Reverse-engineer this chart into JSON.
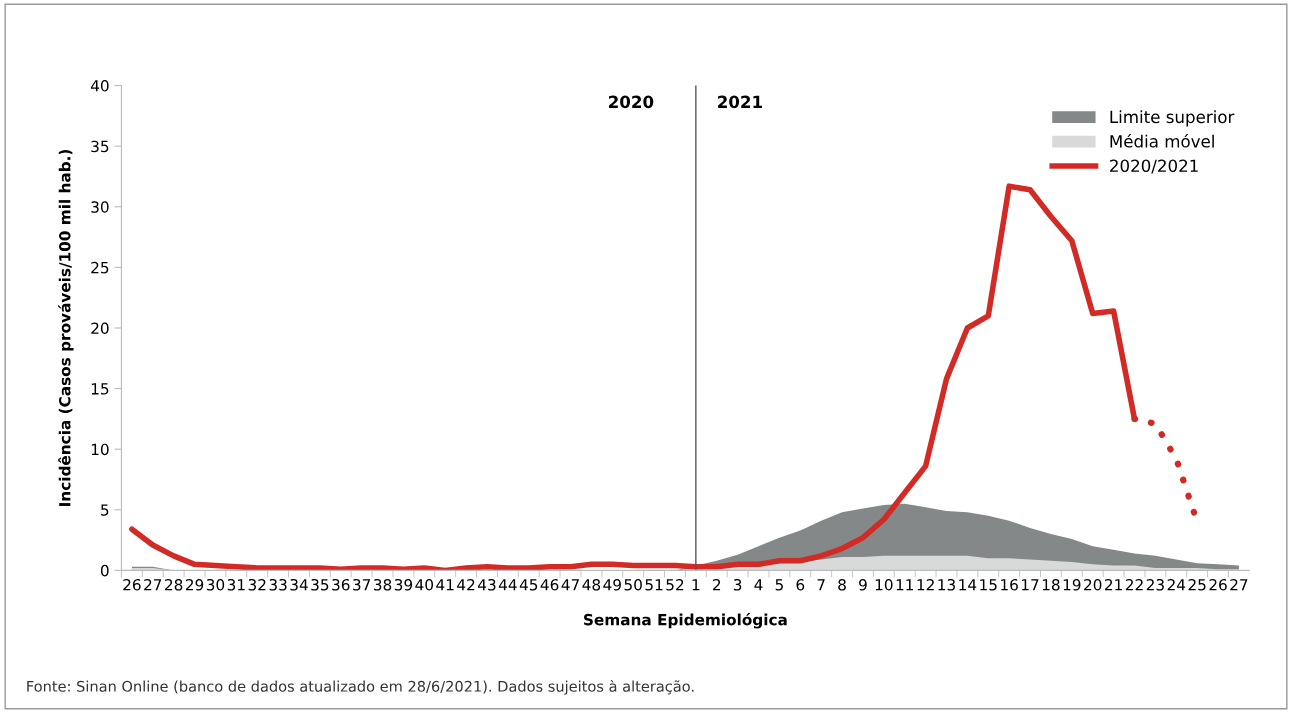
{
  "chart_data": {
    "type": "area",
    "xlabel": "Semana Epidemiológica",
    "ylabel": "Incidência (Casos prováveis/100 mil hab.)",
    "categories": [
      "26",
      "27",
      "28",
      "29",
      "30",
      "31",
      "32",
      "33",
      "34",
      "35",
      "36",
      "37",
      "38",
      "39",
      "40",
      "41",
      "42",
      "43",
      "44",
      "45",
      "46",
      "47",
      "48",
      "49",
      "50",
      "51",
      "52",
      "1",
      "2",
      "3",
      "4",
      "5",
      "6",
      "7",
      "8",
      "9",
      "10",
      "11",
      "12",
      "13",
      "14",
      "15",
      "16",
      "17",
      "18",
      "19",
      "20",
      "21",
      "22",
      "23",
      "24",
      "25",
      "26",
      "27"
    ],
    "series": [
      {
        "name": "Limite superior",
        "color": "#858889",
        "values": [
          0.3,
          0.3,
          0,
          0,
          0,
          0,
          0,
          0,
          0,
          0,
          0,
          0,
          0,
          0,
          0,
          0,
          0,
          0,
          0,
          0,
          0,
          0,
          0,
          0,
          0,
          0,
          0,
          0.4,
          0.8,
          1.3,
          2.0,
          2.7,
          3.3,
          4.1,
          4.8,
          5.1,
          5.4,
          5.5,
          5.2,
          4.9,
          4.8,
          4.5,
          4.1,
          3.5,
          3.0,
          2.6,
          2.0,
          1.7,
          1.4,
          1.2,
          0.9,
          0.6,
          0.5,
          0.4
        ]
      },
      {
        "name": "Média móvel",
        "color": "#d8d9d9",
        "values": [
          0.2,
          0.2,
          0,
          0,
          0,
          0,
          0,
          0,
          0,
          0,
          0,
          0,
          0,
          0,
          0,
          0,
          0,
          0,
          0,
          0,
          0,
          0,
          0,
          0,
          0,
          0,
          0,
          0.2,
          0.3,
          0.3,
          0.4,
          0.6,
          0.7,
          0.9,
          1.1,
          1.1,
          1.2,
          1.2,
          1.2,
          1.2,
          1.2,
          1.0,
          1.0,
          0.9,
          0.8,
          0.7,
          0.5,
          0.4,
          0.4,
          0.2,
          0.2,
          0.2,
          0.1,
          0.1
        ]
      },
      {
        "name": "2020/2021",
        "type": "line",
        "color": "#d22b26",
        "line_style": "solid",
        "values": [
          3.4,
          2.1,
          1.2,
          0.5,
          0.4,
          0.3,
          0.2,
          0.2,
          0.2,
          0.2,
          0.1,
          0.2,
          0.2,
          0.1,
          0.2,
          0.0,
          0.2,
          0.3,
          0.2,
          0.2,
          0.3,
          0.3,
          0.5,
          0.5,
          0.4,
          0.4,
          0.4,
          0.3,
          0.3,
          0.5,
          0.5,
          0.8,
          0.8,
          1.2,
          1.8,
          2.7,
          4.2,
          6.4,
          8.6,
          15.8,
          20.0,
          21.0,
          31.7,
          31.4,
          29.2,
          27.2,
          21.2,
          21.4,
          12.5,
          null,
          null,
          null,
          null,
          null
        ]
      },
      {
        "type": "line",
        "color": "#d22b26",
        "line_style": "dotted",
        "values": [
          null,
          null,
          null,
          null,
          null,
          null,
          null,
          null,
          null,
          null,
          null,
          null,
          null,
          null,
          null,
          null,
          null,
          null,
          null,
          null,
          null,
          null,
          null,
          null,
          null,
          null,
          null,
          null,
          null,
          null,
          null,
          null,
          null,
          null,
          null,
          null,
          null,
          null,
          null,
          null,
          null,
          null,
          null,
          null,
          null,
          null,
          null,
          null,
          12.5,
          12.1,
          9.2,
          4.0,
          null,
          null
        ]
      }
    ],
    "ylim": [
      0,
      40
    ],
    "yticks": [
      0,
      5,
      10,
      15,
      20,
      25,
      30,
      35,
      40
    ],
    "ref_lines": [
      {
        "axis": "x",
        "value": "1",
        "label": "2021",
        "color": "#555555"
      }
    ],
    "annotations": [
      "2020",
      "Fonte: Sinan Online (banco de dados atualizado em 28/6/2021). Dados sujeitos à alteração."
    ],
    "grid": false,
    "legend": "top right"
  }
}
